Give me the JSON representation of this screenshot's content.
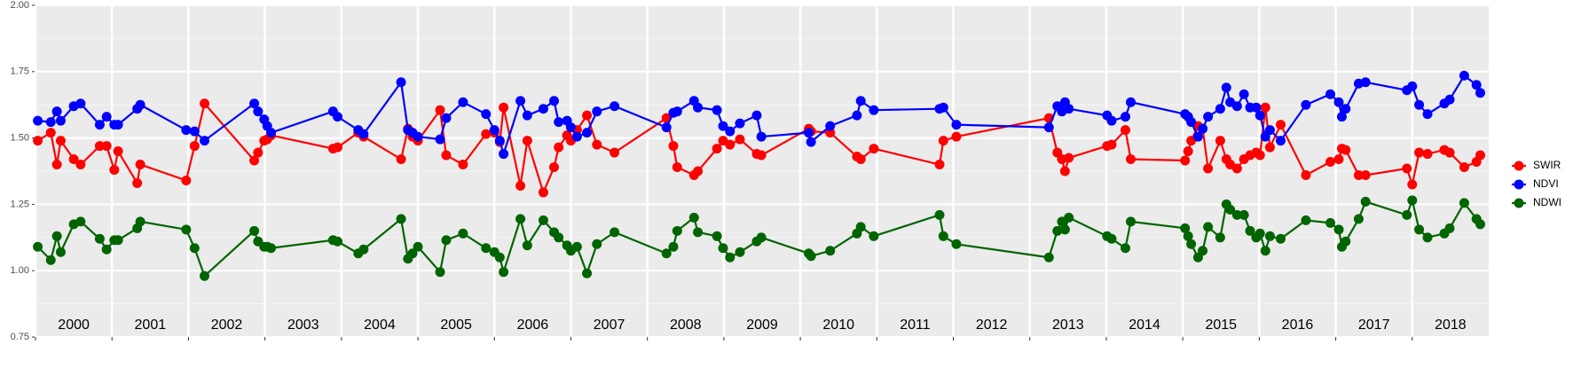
{
  "chart_data": {
    "type": "line",
    "x": [
      2000.03,
      2000.2,
      2000.28,
      2000.33,
      2000.5,
      2000.59,
      2000.84,
      2000.93,
      2001.03,
      2001.08,
      2001.33,
      2001.37,
      2001.97,
      2002.08,
      2002.21,
      2002.86,
      2002.91,
      2002.99,
      2003.03,
      2003.08,
      2003.89,
      2003.95,
      2004.22,
      2004.29,
      2004.78,
      2004.87,
      2004.93,
      2005.0,
      2005.29,
      2005.37,
      2005.59,
      2005.89,
      2006.0,
      2006.07,
      2006.12,
      2006.34,
      2006.43,
      2006.64,
      2006.78,
      2006.84,
      2006.95,
      2007.0,
      2007.08,
      2007.21,
      2007.34,
      2007.57,
      2008.25,
      2008.34,
      2008.39,
      2008.61,
      2008.66,
      2008.91,
      2008.99,
      2009.08,
      2009.21,
      2009.43,
      2009.49,
      2010.11,
      2010.14,
      2010.39,
      2010.74,
      2010.79,
      2010.96,
      2011.82,
      2011.87,
      2012.04,
      2013.25,
      2013.36,
      2013.42,
      2013.46,
      2013.51,
      2014.01,
      2014.07,
      2014.25,
      2014.32,
      2015.03,
      2015.07,
      2015.11,
      2015.2,
      2015.26,
      2015.33,
      2015.49,
      2015.57,
      2015.62,
      2015.71,
      2015.8,
      2015.88,
      2015.96,
      2016.01,
      2016.08,
      2016.14,
      2016.28,
      2016.61,
      2016.93,
      2017.04,
      2017.08,
      2017.13,
      2017.3,
      2017.39,
      2017.93,
      2018.0,
      2018.09,
      2018.2,
      2018.42,
      2018.49,
      2018.68,
      2018.84,
      2018.89
    ],
    "series": [
      {
        "name": "SWIR",
        "color": "#ff0000",
        "values": [
          1.49,
          1.52,
          1.4,
          1.49,
          1.42,
          1.4,
          1.47,
          1.47,
          1.38,
          1.45,
          1.33,
          1.4,
          1.34,
          1.47,
          1.63,
          1.415,
          1.445,
          1.49,
          1.495,
          1.51,
          1.46,
          1.465,
          1.52,
          1.505,
          1.42,
          1.535,
          1.505,
          1.49,
          1.605,
          1.435,
          1.4,
          1.515,
          1.52,
          1.485,
          1.615,
          1.32,
          1.49,
          1.295,
          1.39,
          1.465,
          1.51,
          1.49,
          1.53,
          1.585,
          1.475,
          1.445,
          1.575,
          1.47,
          1.39,
          1.36,
          1.375,
          1.46,
          1.49,
          1.475,
          1.495,
          1.44,
          1.435,
          1.535,
          1.525,
          1.52,
          1.43,
          1.42,
          1.46,
          1.4,
          1.49,
          1.505,
          1.575,
          1.445,
          1.42,
          1.375,
          1.425,
          1.47,
          1.475,
          1.53,
          1.42,
          1.415,
          1.45,
          1.49,
          1.545,
          1.535,
          1.385,
          1.49,
          1.42,
          1.4,
          1.385,
          1.42,
          1.435,
          1.445,
          1.435,
          1.615,
          1.465,
          1.55,
          1.36,
          1.41,
          1.42,
          1.46,
          1.455,
          1.36,
          1.36,
          1.385,
          1.325,
          1.445,
          1.44,
          1.455,
          1.445,
          1.39,
          1.41,
          1.435
        ]
      },
      {
        "name": "NDVI",
        "color": "#0000ff",
        "values": [
          1.565,
          1.56,
          1.6,
          1.565,
          1.62,
          1.63,
          1.55,
          1.58,
          1.55,
          1.55,
          1.61,
          1.625,
          1.53,
          1.525,
          1.49,
          1.63,
          1.6,
          1.57,
          1.545,
          1.52,
          1.6,
          1.58,
          1.53,
          1.515,
          1.71,
          1.53,
          1.52,
          1.505,
          1.495,
          1.575,
          1.635,
          1.59,
          1.53,
          1.49,
          1.44,
          1.64,
          1.585,
          1.61,
          1.64,
          1.56,
          1.565,
          1.54,
          1.505,
          1.52,
          1.6,
          1.62,
          1.54,
          1.595,
          1.6,
          1.64,
          1.615,
          1.605,
          1.545,
          1.525,
          1.555,
          1.585,
          1.505,
          1.52,
          1.485,
          1.545,
          1.585,
          1.64,
          1.605,
          1.61,
          1.615,
          1.55,
          1.54,
          1.62,
          1.6,
          1.635,
          1.61,
          1.585,
          1.565,
          1.58,
          1.635,
          1.59,
          1.58,
          1.56,
          1.505,
          1.535,
          1.58,
          1.61,
          1.69,
          1.635,
          1.62,
          1.665,
          1.615,
          1.615,
          1.585,
          1.505,
          1.53,
          1.49,
          1.625,
          1.665,
          1.635,
          1.58,
          1.61,
          1.705,
          1.71,
          1.68,
          1.695,
          1.625,
          1.59,
          1.63,
          1.645,
          1.735,
          1.7,
          1.67
        ]
      },
      {
        "name": "NDWI",
        "color": "#006400",
        "values": [
          1.09,
          1.04,
          1.13,
          1.07,
          1.175,
          1.185,
          1.12,
          1.08,
          1.115,
          1.115,
          1.16,
          1.185,
          1.155,
          1.085,
          0.98,
          1.15,
          1.11,
          1.09,
          1.09,
          1.085,
          1.115,
          1.11,
          1.065,
          1.08,
          1.195,
          1.045,
          1.065,
          1.09,
          0.995,
          1.115,
          1.14,
          1.085,
          1.07,
          1.05,
          0.995,
          1.195,
          1.095,
          1.19,
          1.145,
          1.125,
          1.095,
          1.075,
          1.09,
          0.99,
          1.1,
          1.145,
          1.065,
          1.09,
          1.15,
          1.2,
          1.145,
          1.13,
          1.085,
          1.05,
          1.07,
          1.11,
          1.125,
          1.065,
          1.055,
          1.075,
          1.14,
          1.165,
          1.13,
          1.21,
          1.13,
          1.1,
          1.05,
          1.15,
          1.185,
          1.155,
          1.2,
          1.13,
          1.12,
          1.085,
          1.185,
          1.16,
          1.13,
          1.1,
          1.05,
          1.075,
          1.165,
          1.125,
          1.25,
          1.23,
          1.21,
          1.21,
          1.15,
          1.125,
          1.14,
          1.075,
          1.13,
          1.12,
          1.19,
          1.18,
          1.155,
          1.09,
          1.11,
          1.195,
          1.26,
          1.21,
          1.265,
          1.155,
          1.125,
          1.14,
          1.16,
          1.255,
          1.195,
          1.175
        ]
      }
    ],
    "xlim": [
      2000,
      2019
    ],
    "xticks": [
      2000,
      2001,
      2002,
      2003,
      2004,
      2005,
      2006,
      2007,
      2008,
      2009,
      2010,
      2011,
      2012,
      2013,
      2014,
      2015,
      2016,
      2017,
      2018
    ],
    "ylim": [
      0.75,
      2
    ],
    "yticks": [
      0.75,
      {
        "value": 1,
        "label": "1.00"
      },
      1.25,
      {
        "value": 1.5,
        "label": "1.50"
      },
      1.75,
      {
        "value": 2,
        "label": "2.00"
      }
    ],
    "grid": true,
    "legend": "right"
  }
}
